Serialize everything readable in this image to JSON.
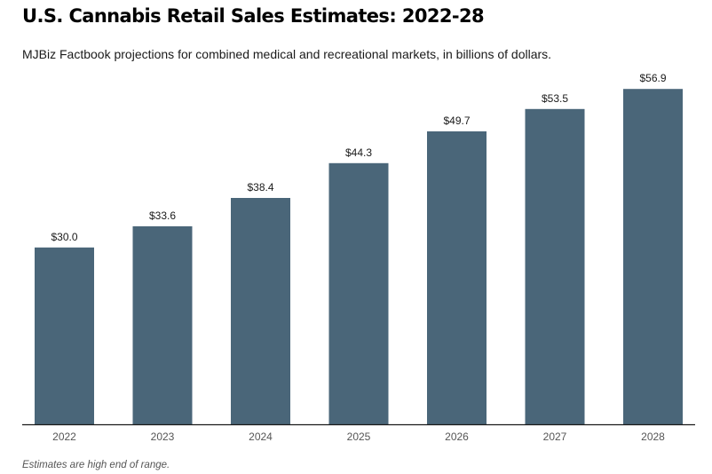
{
  "header": {
    "title": "U.S. Cannabis Retail Sales Estimates: 2022-28",
    "subtitle": "MJBiz Factbook projections for combined medical and recreational markets, in billions of dollars."
  },
  "footer": {
    "note": "Estimates are high end of range."
  },
  "colors": {
    "bar": "#4a6679",
    "axis": "#1a1a1a"
  },
  "chart_data": {
    "type": "bar",
    "title": "U.S. Cannabis Retail Sales Estimates: 2022-28",
    "subtitle": "MJBiz Factbook projections for combined medical and recreational markets, in billions of dollars.",
    "xlabel": "",
    "ylabel": "",
    "categories": [
      "2022",
      "2023",
      "2024",
      "2025",
      "2026",
      "2027",
      "2028"
    ],
    "values": [
      30.0,
      33.6,
      38.4,
      44.3,
      49.7,
      53.5,
      56.9
    ],
    "value_labels": [
      "$30.0",
      "$33.6",
      "$38.4",
      "$44.3",
      "$49.7",
      "$53.5",
      "$56.9"
    ],
    "ylim": [
      0,
      60
    ],
    "grid": false,
    "legend": "none",
    "note": "Estimates are high end of range."
  }
}
